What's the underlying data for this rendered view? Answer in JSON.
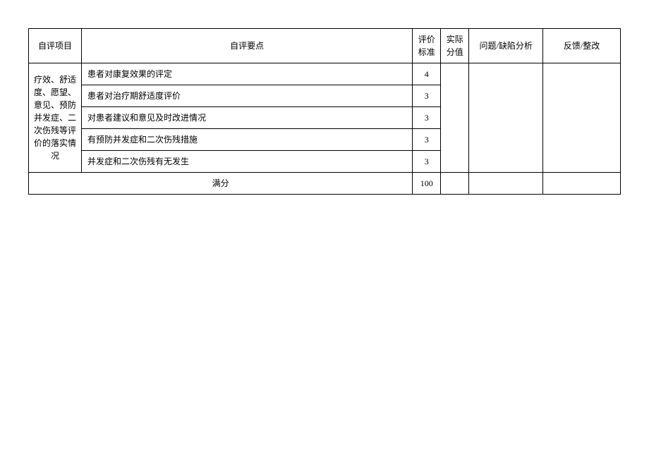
{
  "table": {
    "headers": {
      "category": "自评项目",
      "item": "自评要点",
      "standard": "评价标准",
      "actual": "实际分值",
      "analysis": "问题/缺陷分析",
      "feedback": "反馈/整改"
    },
    "category_label": "疗效、舒适度、愿望、意见、预防并发症、二次伤残等评价的落实情况",
    "rows": [
      {
        "item": "患者对康复效果的评定",
        "standard": "4",
        "actual": "",
        "analysis": "",
        "feedback": ""
      },
      {
        "item": "患者对治疗期舒适度评价",
        "standard": "3",
        "actual": "",
        "analysis": "",
        "feedback": ""
      },
      {
        "item": "对患者建议和意见及时改进情况",
        "standard": "3",
        "actual": "",
        "analysis": "",
        "feedback": ""
      },
      {
        "item": "有预防并发症和二次伤残措施",
        "standard": "3",
        "actual": "",
        "analysis": "",
        "feedback": ""
      },
      {
        "item": "并发症和二次伤残有无发生",
        "standard": "3",
        "actual": "",
        "analysis": "",
        "feedback": ""
      }
    ],
    "total": {
      "label": "满分",
      "standard": "100",
      "actual": "",
      "analysis": "",
      "feedback": ""
    }
  },
  "styling": {
    "border_color": "#000000",
    "background_color": "#ffffff",
    "text_color": "#000000",
    "font_size": 12,
    "font_family": "SimSun",
    "column_widths": {
      "category": 75,
      "item": 470,
      "standard": 40,
      "actual": 40,
      "analysis": 105,
      "feedback": 110
    }
  }
}
